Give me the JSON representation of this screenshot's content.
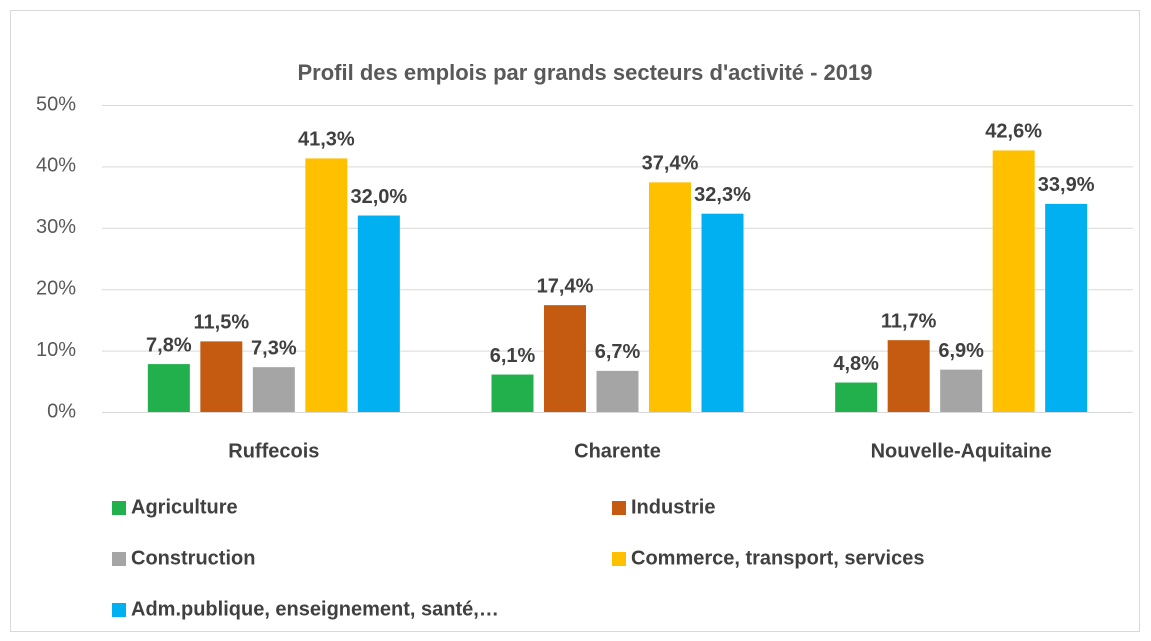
{
  "chart_data": {
    "type": "bar",
    "title": "Profil des emplois par grands secteurs d'activité - 2019",
    "categories": [
      "Ruffecois",
      "Charente",
      "Nouvelle-Aquitaine"
    ],
    "series": [
      {
        "name": "Agriculture",
        "color": "#21b04b",
        "values": [
          7.8,
          6.1,
          4.8
        ],
        "value_labels": [
          "7,8%",
          "6,1%",
          "4,8%"
        ]
      },
      {
        "name": "Industrie",
        "color": "#c55a11",
        "values": [
          11.5,
          17.4,
          11.7
        ],
        "value_labels": [
          "11,5%",
          "17,4%",
          "11,7%"
        ]
      },
      {
        "name": "Construction",
        "color": "#a5a5a5",
        "values": [
          7.3,
          6.7,
          6.9
        ],
        "value_labels": [
          "7,3%",
          "6,7%",
          "6,9%"
        ]
      },
      {
        "name": "Commerce, transport, services",
        "color": "#ffc000",
        "values": [
          41.3,
          37.4,
          42.6
        ],
        "value_labels": [
          "41,3%",
          "37,4%",
          "42,6%"
        ]
      },
      {
        "name": "Adm.publique, enseignement, santé,…",
        "color": "#00b0f0",
        "values": [
          32.0,
          32.3,
          33.9
        ],
        "value_labels": [
          "32,0%",
          "32,3%",
          "33,9%"
        ]
      }
    ],
    "ylim": [
      0,
      50
    ],
    "yticks": [
      {
        "value": 0,
        "label": "0%"
      },
      {
        "value": 10,
        "label": "10%"
      },
      {
        "value": 20,
        "label": "20%"
      },
      {
        "value": 30,
        "label": "30%"
      },
      {
        "value": 40,
        "label": "40%"
      },
      {
        "value": 50,
        "label": "50%"
      }
    ],
    "grid": true,
    "legend": "bottom"
  }
}
